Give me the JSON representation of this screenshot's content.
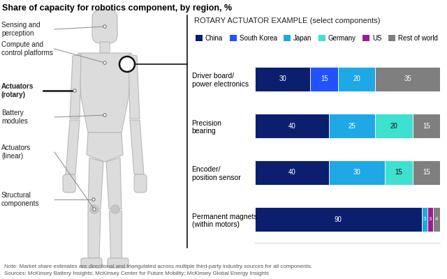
{
  "title": "Share of capacity for robotics component, by region, %",
  "diagram": {
    "labels": [
      "Sensing and\nperception",
      "Compute and\ncontrol platforms",
      "Actuators\n(rotary)",
      "Battery\nmodules",
      "Actuators\n(linear)",
      "Structural\ncomponents"
    ]
  },
  "chart_data": {
    "type": "bar",
    "title": "ROTARY ACTUATOR EXAMPLE (select components)",
    "orientation": "horizontal",
    "stacked": true,
    "data_labels": true,
    "tick_labels": "y",
    "legend": "upper left",
    "xlim": [
      0,
      100
    ],
    "categories": [
      "Driver board/\npower electronics",
      "Precision\nbearing",
      "Encoder/\nposition sensor",
      "Permanent magnets\n(within motors)"
    ],
    "series": [
      {
        "name": "China",
        "color": "#0b1f6e",
        "values": [
          30,
          40,
          40,
          90
        ]
      },
      {
        "name": "South Korea",
        "color": "#2251ff",
        "values": [
          15,
          null,
          null,
          null
        ]
      },
      {
        "name": "Japan",
        "color": "#1fa8e6",
        "values": [
          20,
          25,
          30,
          3
        ]
      },
      {
        "name": "Germany",
        "color": "#3ee0cf",
        "values": [
          null,
          20,
          15,
          null
        ]
      },
      {
        "name": "US",
        "color": "#9b1d8c",
        "values": [
          null,
          null,
          null,
          3
        ]
      },
      {
        "name": "Rest of world",
        "color": "#7f7f7f",
        "values": [
          35,
          15,
          15,
          4
        ]
      }
    ]
  },
  "note": "Note: Market share estimates are directional and triangulated across multiple third-party industry sources for all components.",
  "sources": "Sources: McKinsey Battery Insights; McKinsey Center for Future Mobility; McKinsey Global Energy Insights"
}
